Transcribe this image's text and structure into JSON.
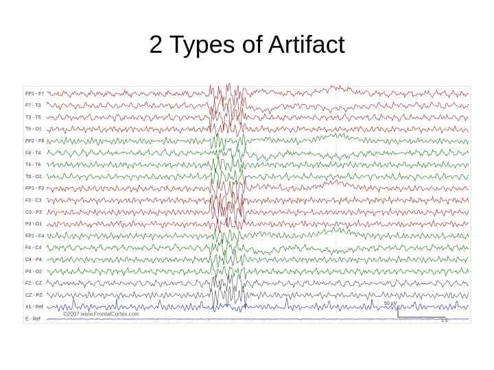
{
  "title": "2 Types of Artifact",
  "figure": {
    "channels": [
      {
        "label": "FP1 - F7",
        "color": "#9b3a3a"
      },
      {
        "label": "F7 - T3",
        "color": "#9b3a3a"
      },
      {
        "label": "T3 - T5",
        "color": "#9b3a3a"
      },
      {
        "label": "T5 - O1",
        "color": "#9b3a3a"
      },
      {
        "label": "FP2 - F8",
        "color": "#2e7d32"
      },
      {
        "label": "F8 - T4",
        "color": "#2e7d32"
      },
      {
        "label": "T4 - T6",
        "color": "#2e7d32"
      },
      {
        "label": "T6 - O2",
        "color": "#2e7d32"
      },
      {
        "label": "FP1 - F3",
        "color": "#9b3a3a"
      },
      {
        "label": "F3 - C3",
        "color": "#9b3a3a"
      },
      {
        "label": "C3 - P3",
        "color": "#9b3a3a"
      },
      {
        "label": "P3 - O1",
        "color": "#9b3a3a"
      },
      {
        "label": "FP2 - F4",
        "color": "#2e7d32"
      },
      {
        "label": "F4 - C4",
        "color": "#2e7d32"
      },
      {
        "label": "C4 - P4",
        "color": "#2e7d32"
      },
      {
        "label": "P4 - O2",
        "color": "#2e7d32"
      },
      {
        "label": "FZ - CZ",
        "color": "#555566"
      },
      {
        "label": "CZ - PZ",
        "color": "#555566"
      },
      {
        "label": "X1 - Ref",
        "color": "#3040a0"
      },
      {
        "label": "E - Ref",
        "color": "#3040a0"
      }
    ],
    "copyright": "©2007 www.FrontalCortex.com",
    "amplitude_scale": "50 µV",
    "time_scale": "1 s"
  }
}
